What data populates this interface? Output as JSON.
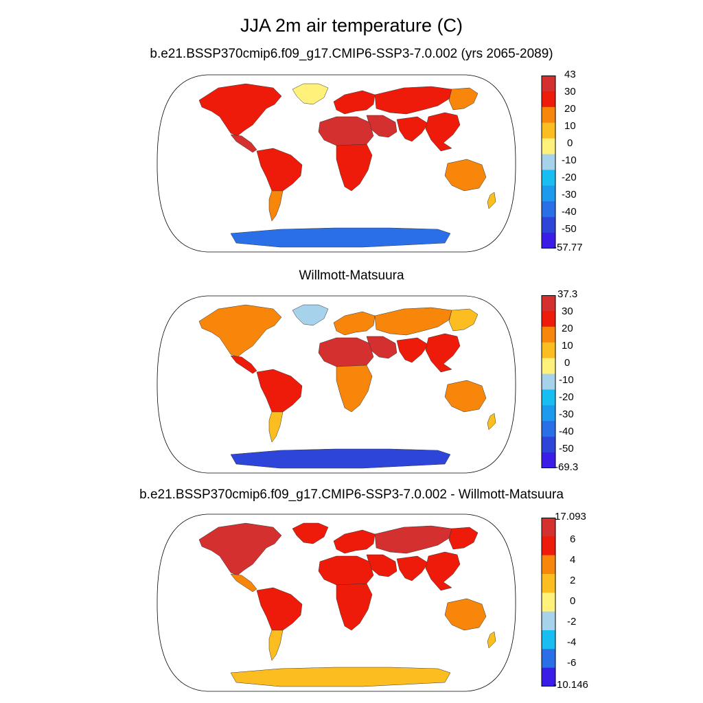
{
  "title": "JJA 2m air temperature (C)",
  "palette": [
    "#3a1ee8",
    "#2d45d8",
    "#2b6fe8",
    "#1c9aee",
    "#18bdf2",
    "#a6d2ec",
    "#fff17a",
    "#fbbd1f",
    "#f7860b",
    "#ee1b0b",
    "#d43030"
  ],
  "colors": {
    "ocean": "#ffffff",
    "outline": "#333333"
  },
  "panels": [
    {
      "title": "b.e21.BSSP370cmip6.f09_g17.CMIP6-SSP3-7.0.002 (yrs 2065-2089)",
      "colorbar_labels": [
        "43",
        "30",
        "20",
        "10",
        "0",
        "-10",
        "-20",
        "-30",
        "-40",
        "-50",
        "-57.77"
      ],
      "regions": {
        "north_america": 9,
        "greenland": 6,
        "central_america": 10,
        "south_america": 9,
        "patagonia": 8,
        "europe": 9,
        "north_asia": 9,
        "siberia_east": 8,
        "middle_east": 10,
        "africa_north": 10,
        "africa_south": 9,
        "south_asia": 9,
        "se_asia": 9,
        "australia": 8,
        "nz": 7,
        "antarctica": 2
      }
    },
    {
      "title": "Willmott-Matsuura",
      "colorbar_labels": [
        "37.3",
        "30",
        "20",
        "10",
        "0",
        "-10",
        "-20",
        "-30",
        "-40",
        "-50",
        "-69.3"
      ],
      "regions": {
        "north_america": 8,
        "greenland": 5,
        "central_america": 9,
        "south_america": 9,
        "patagonia": 7,
        "europe": 8,
        "north_asia": 8,
        "siberia_east": 7,
        "middle_east": 10,
        "africa_north": 10,
        "africa_south": 8,
        "south_asia": 9,
        "se_asia": 9,
        "australia": 8,
        "nz": 7,
        "antarctica": 1
      }
    },
    {
      "title": "b.e21.BSSP370cmip6.f09_g17.CMIP6-SSP3-7.0.002 - Willmott-Matsuura",
      "colorbar_labels": [
        "17.093",
        "6",
        "4",
        "2",
        "0",
        "-2",
        "-4",
        "-6",
        "-10.146"
      ],
      "palette": [
        "#3a1ee8",
        "#2b6fe8",
        "#18bdf2",
        "#a6d2ec",
        "#fff17a",
        "#fbbd1f",
        "#f7860b",
        "#ee1b0b",
        "#d43030"
      ],
      "regions": {
        "north_america": 8,
        "greenland": 7,
        "central_america": 6,
        "south_america": 7,
        "patagonia": 5,
        "europe": 7,
        "north_asia": 8,
        "siberia_east": 7,
        "middle_east": 7,
        "africa_north": 7,
        "africa_south": 7,
        "south_asia": 7,
        "se_asia": 7,
        "australia": 6,
        "nz": 5,
        "antarctica": 5
      }
    }
  ]
}
